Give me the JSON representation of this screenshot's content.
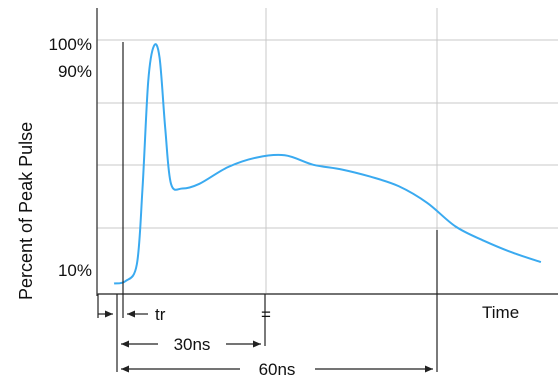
{
  "chart_data": {
    "type": "line",
    "title": "",
    "ylabel": "Percent of Peak Pulse Current",
    "ylabel_visible": "Percent of Peak Pulse",
    "xlabel": "Time",
    "y_tick_labels": [
      {
        "label": "100%",
        "value": 100
      },
      {
        "label": "90%",
        "value": 90
      },
      {
        "label": "10%",
        "value": 10
      }
    ],
    "x_annotations": [
      {
        "label": "tr"
      },
      {
        "label": "="
      },
      {
        "label": "30ns"
      },
      {
        "label": "60ns"
      }
    ],
    "series": [
      {
        "color": "#3aaaf0",
        "x": [
          0,
          2,
          4,
          5,
          6,
          7,
          8,
          9,
          10,
          12,
          15,
          20,
          25,
          30,
          35,
          40,
          45,
          50,
          55,
          60,
          65,
          70,
          75
        ],
        "y": [
          0,
          1,
          8,
          40,
          85,
          100,
          95,
          65,
          42,
          40,
          42,
          49,
          53,
          54,
          50,
          48,
          45,
          41,
          34,
          24,
          18,
          13,
          9
        ]
      }
    ],
    "xlim": [
      -3,
      78
    ],
    "ylim": [
      -4,
      116
    ],
    "grid": true,
    "colors": {
      "curve": "#3aaaf0",
      "grid": "#c8c8c8",
      "axis": "#444444",
      "text": "#111111"
    }
  }
}
